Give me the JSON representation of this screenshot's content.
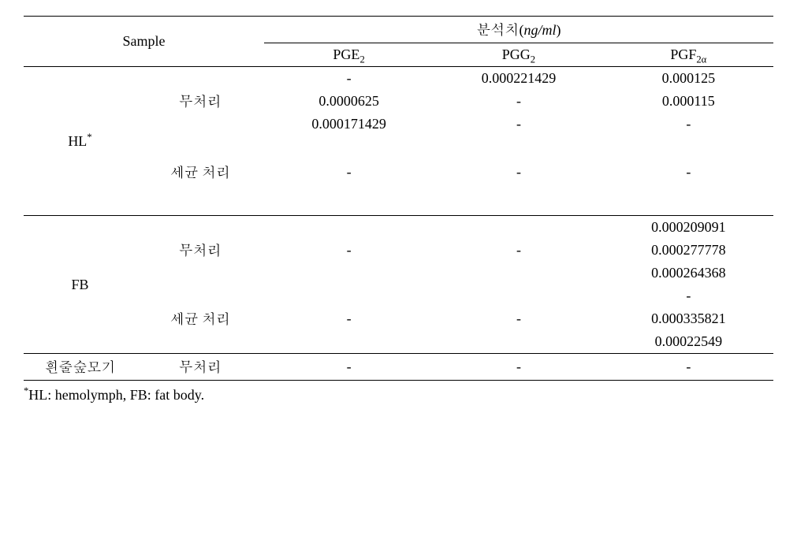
{
  "headers": {
    "sample": "Sample",
    "analysis": "분석치",
    "analysis_unit_prefix": "(",
    "analysis_unit": "ng/ml",
    "analysis_unit_suffix": ")",
    "pge2_base": "PGE",
    "pge2_sub": "2",
    "pgg2_base": "PGG",
    "pgg2_sub": "2",
    "pgf2a_base": "PGF",
    "pgf2a_sub": "2α"
  },
  "groups": {
    "hl_label": "HL",
    "hl_star": "*",
    "fb_label": "FB",
    "mosquito_label": "흰줄숲모기",
    "untreated": "무처리",
    "bacteria": "세균 처리"
  },
  "data": {
    "hl_untreated": {
      "r1": {
        "pge2": "-",
        "pgg2": "0.000221429",
        "pgf2a": "0.000125"
      },
      "r2": {
        "pge2": "0.0000625",
        "pgg2": "-",
        "pgf2a": "0.000115"
      },
      "r3": {
        "pge2": "0.000171429",
        "pgg2": "-",
        "pgf2a": "-"
      }
    },
    "hl_bacteria": {
      "r1": {
        "pge2": "-",
        "pgg2": "-",
        "pgf2a": "-"
      }
    },
    "fb_untreated": {
      "r1": {
        "pge2": "",
        "pgg2": "",
        "pgf2a": "0.000209091"
      },
      "r2": {
        "pge2": "-",
        "pgg2": "-",
        "pgf2a": "0.000277778"
      },
      "r3": {
        "pge2": "",
        "pgg2": "",
        "pgf2a": "0.000264368"
      }
    },
    "fb_bacteria": {
      "r1": {
        "pge2": "",
        "pgg2": "",
        "pgf2a": "-"
      },
      "r2": {
        "pge2": "-",
        "pgg2": "-",
        "pgf2a": "0.000335821"
      },
      "r3": {
        "pge2": "",
        "pgg2": "",
        "pgf2a": "0.00022549"
      }
    },
    "mosquito": {
      "r1": {
        "pge2": "-",
        "pgg2": "-",
        "pgf2a": "-"
      }
    }
  },
  "footnote": {
    "star": "*",
    "text": "HL: hemolymph, FB: fat body."
  }
}
